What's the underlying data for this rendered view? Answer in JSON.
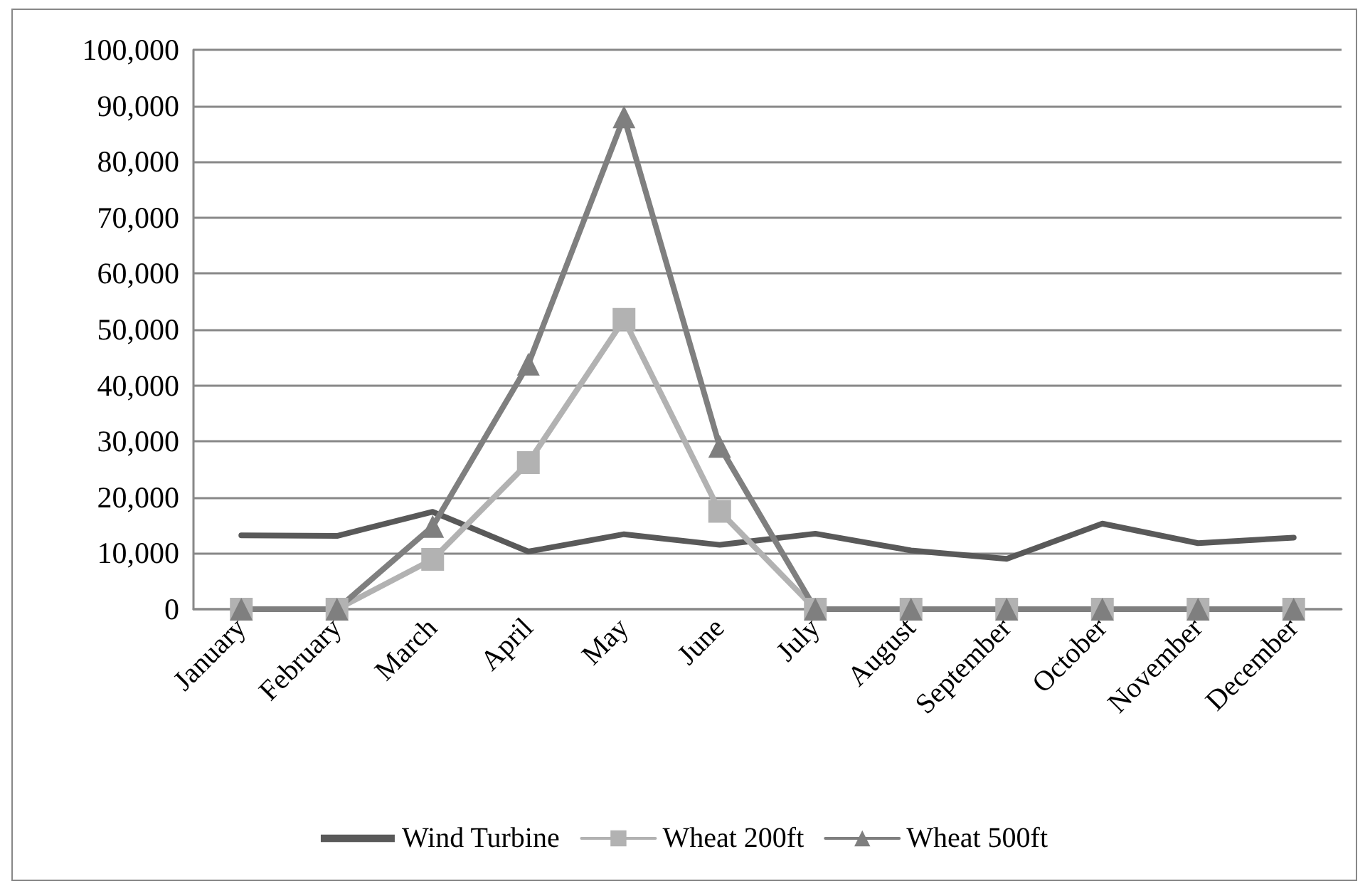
{
  "chart_data": {
    "type": "line",
    "categories": [
      "January",
      "February",
      "March",
      "April",
      "May",
      "June",
      "July",
      "August",
      "September",
      "October",
      "November",
      "December"
    ],
    "series": [
      {
        "name": "Wind Turbine",
        "color": "#595959",
        "marker": "none",
        "values": [
          13200,
          13100,
          17400,
          10300,
          13400,
          11500,
          13500,
          10500,
          9000,
          15300,
          11800,
          12800
        ]
      },
      {
        "name": "Wheat 200ft",
        "color": "#b2b2b2",
        "marker": "square",
        "values": [
          0,
          0,
          8900,
          26200,
          51800,
          17500,
          0,
          0,
          0,
          0,
          0,
          0
        ]
      },
      {
        "name": "Wheat 500ft",
        "color": "#7f7f7f",
        "marker": "triangle",
        "values": [
          0,
          0,
          14800,
          43800,
          88000,
          29100,
          0,
          0,
          0,
          0,
          0,
          0
        ]
      }
    ],
    "ylim": [
      0,
      100000
    ],
    "yticks": [
      0,
      {
        "value": 10000,
        "label": "10,000"
      },
      {
        "value": 20000,
        "label": "20,000"
      },
      {
        "value": 30000,
        "label": "30,000"
      },
      {
        "value": 40000,
        "label": "40,000"
      },
      {
        "value": 50000,
        "label": "50,000"
      },
      {
        "value": 60000,
        "label": "60,000"
      },
      {
        "value": 70000,
        "label": "70,000"
      },
      {
        "value": 80000,
        "label": "80,000"
      },
      {
        "value": 90000,
        "label": "90,000"
      },
      {
        "value": 100000,
        "label": "100,000"
      }
    ],
    "grid": "y",
    "legend": "bottom",
    "line_style": "solid"
  }
}
